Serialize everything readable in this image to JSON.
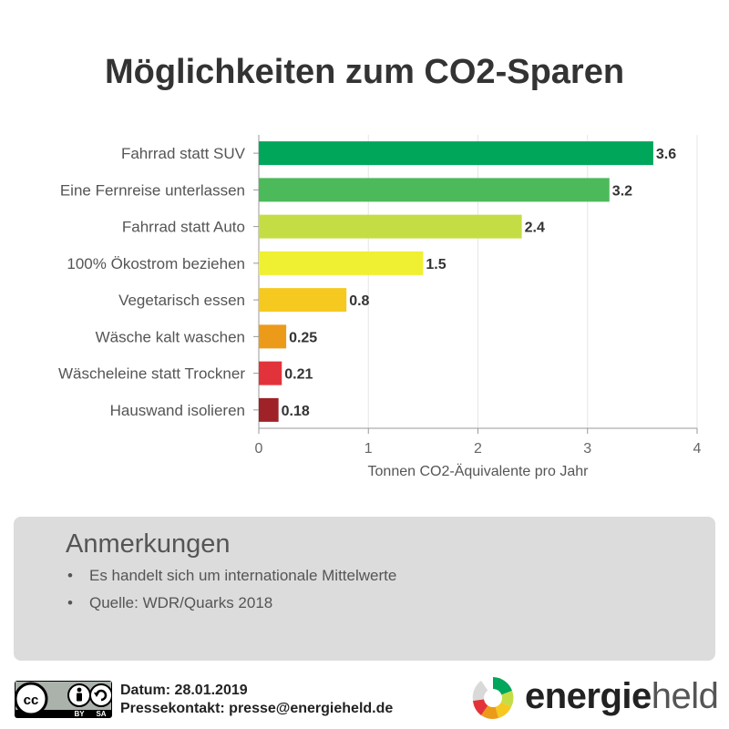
{
  "title": "Möglichkeiten zum CO2-Sparen",
  "chart_data": {
    "type": "bar",
    "orientation": "horizontal",
    "categories": [
      "Fahrrad statt SUV",
      "Eine Fernreise unterlassen",
      "Fahrrad statt Auto",
      "100% Ökostrom beziehen",
      "Vegetarisch essen",
      "Wäsche kalt waschen",
      "Wäscheleine statt Trockner",
      "Hauswand isolieren"
    ],
    "values": [
      3.6,
      3.2,
      2.4,
      1.5,
      0.8,
      0.25,
      0.21,
      0.18
    ],
    "value_labels": [
      "3.6",
      "3.2",
      "2.4",
      "1.5",
      "0.8",
      "0.25",
      "0.21",
      "0.18"
    ],
    "colors": [
      "#00a65a",
      "#4cba5a",
      "#c5dd45",
      "#f0f032",
      "#f5c91f",
      "#ec9a1a",
      "#e3333a",
      "#9e2228"
    ],
    "xlabel": "Tonnen CO2-Äquivalente pro Jahr",
    "xlim": [
      0,
      4
    ],
    "xticks": [
      0,
      1,
      2,
      3,
      4
    ],
    "grid": true
  },
  "notes": {
    "heading": "Anmerkungen",
    "items": [
      "Es handelt sich um internationale Mittelwerte",
      "Quelle: WDR/Quarks 2018"
    ]
  },
  "footer": {
    "license_badge_text": [
      "BY",
      "SA"
    ],
    "date_line": "Datum: 28.01.2019",
    "contact_line": "Pressekontakt: presse@energieheld.de",
    "brand_part1": "energie",
    "brand_part2": "held"
  }
}
